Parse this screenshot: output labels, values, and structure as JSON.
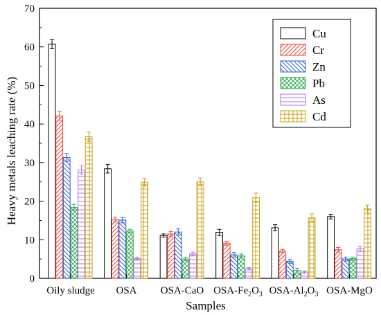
{
  "chart_data": {
    "type": "bar",
    "xlabel": "Samples",
    "ylabel": "Heavy metals leaching rate (%)",
    "ylim": [
      0,
      70
    ],
    "yticks": [
      "0",
      "10",
      "20",
      "30",
      "40",
      "50",
      "60",
      "70"
    ],
    "categories": [
      {
        "text": "Oily sludge"
      },
      {
        "text": "OSA"
      },
      {
        "text": "OSA-CaO"
      },
      {
        "text": "OSA-Fe",
        "sub1": "2",
        "mid": "O",
        "sub2": "3"
      },
      {
        "text": "OSA-Al",
        "sub1": "2",
        "mid": "O",
        "sub2": "3"
      },
      {
        "text": "OSA-MgO"
      }
    ],
    "legend_position": "top-right",
    "series": [
      {
        "name": "Cu",
        "color": "#000000",
        "pattern": "none",
        "values": [
          60.7,
          28.4,
          11.1,
          11.9,
          13.1,
          16.0
        ],
        "errors": [
          1.2,
          1.1,
          0.4,
          0.8,
          0.8,
          0.6
        ]
      },
      {
        "name": "Cr",
        "color": "#e8463a",
        "pattern": "diag-right",
        "values": [
          42.1,
          15.2,
          11.5,
          9.1,
          7.1,
          7.4
        ],
        "errors": [
          1.1,
          0.6,
          0.6,
          0.5,
          0.4,
          0.6
        ]
      },
      {
        "name": "Zn",
        "color": "#2f5fd0",
        "pattern": "diag-left",
        "values": [
          31.3,
          15.1,
          12.0,
          6.1,
          4.4,
          5.0
        ],
        "errors": [
          1.0,
          0.7,
          0.8,
          0.6,
          0.5,
          0.5
        ]
      },
      {
        "name": "Pb",
        "color": "#2fa84f",
        "pattern": "crosshatch",
        "values": [
          18.4,
          12.3,
          5.0,
          5.8,
          2.0,
          5.1
        ],
        "errors": [
          0.8,
          0.4,
          0.4,
          0.5,
          0.6,
          0.4
        ]
      },
      {
        "name": "As",
        "color": "#b36fe0",
        "pattern": "horizontal",
        "values": [
          28.1,
          5.1,
          6.3,
          2.5,
          1.6,
          7.7
        ],
        "errors": [
          1.1,
          0.4,
          0.5,
          0.3,
          0.3,
          0.6
        ]
      },
      {
        "name": "Cd",
        "color": "#c8a21a",
        "pattern": "grid",
        "values": [
          36.7,
          24.9,
          25.0,
          20.9,
          15.7,
          18.0
        ],
        "errors": [
          1.2,
          1.0,
          1.0,
          1.2,
          1.0,
          1.0
        ]
      }
    ]
  }
}
